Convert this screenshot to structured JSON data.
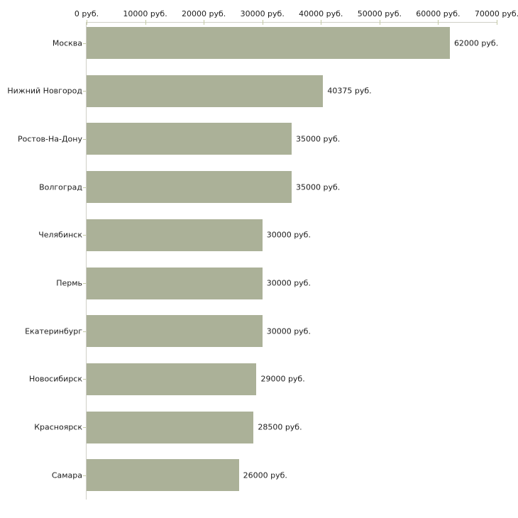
{
  "chart_data": {
    "type": "bar",
    "orientation": "horizontal",
    "title": "",
    "xlabel": "",
    "ylabel": "",
    "grid": false,
    "legend": false,
    "categories": [
      "Москва",
      "Нижний Новгород",
      "Ростов-На-Дону",
      "Волгоград",
      "Челябинск",
      "Пермь",
      "Екатеринбург",
      "Новосибирск",
      "Красноярск",
      "Самара"
    ],
    "values": [
      62000,
      40375,
      35000,
      35000,
      30000,
      30000,
      30000,
      29000,
      28500,
      26000
    ],
    "value_labels": [
      "62000 руб.",
      "40375 руб.",
      "35000 руб.",
      "35000 руб.",
      "30000 руб.",
      "30000 руб.",
      "30000 руб.",
      "29000 руб.",
      "28500 руб.",
      "26000 руб."
    ],
    "x_axis": {
      "position": "top",
      "min": 0,
      "max": 70000,
      "tick_values": [
        0,
        10000,
        20000,
        30000,
        40000,
        50000,
        60000,
        70000
      ],
      "tick_labels": [
        "0 руб.",
        "10000 руб.",
        "20000 руб.",
        "30000 руб.",
        "40000 руб.",
        "50000 руб.",
        "60000 руб.",
        "70000 руб."
      ]
    },
    "colors": {
      "bar": "#abb198",
      "axis_line": "#cfcfc7",
      "tick": "#c3c9a4",
      "text": "#1c1c1c",
      "background": "#ffffff"
    }
  }
}
